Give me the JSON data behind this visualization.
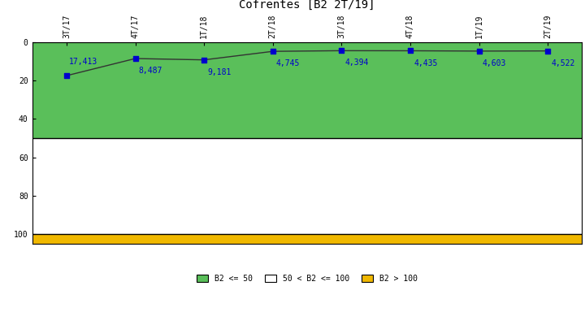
{
  "title": "Cofrentes [B2 2T/19]",
  "x_labels": [
    "3T/17",
    "4T/17",
    "1T/18",
    "2T/18",
    "3T/18",
    "4T/18",
    "1T/19",
    "2T/19"
  ],
  "y_values": [
    17.413,
    8.487,
    9.181,
    4.745,
    4.394,
    4.435,
    4.603,
    4.522
  ],
  "y_label_values": [
    "17,413",
    "8,487",
    "9,181",
    "4,745",
    "4,394",
    "4,435",
    "4,603",
    "4,522"
  ],
  "ylim": [
    0,
    105
  ],
  "yticks": [
    0,
    20,
    40,
    60,
    80,
    100
  ],
  "zone_green_max": 50,
  "zone_white_max": 100,
  "color_green": "#5abf5a",
  "color_white": "#ffffff",
  "color_orange": "#f0b800",
  "color_line": "#333333",
  "color_dot": "#0000cc",
  "color_label": "#0000cc",
  "legend_labels": [
    "B2 <= 50",
    "50 < B2 <= 100",
    "B2 > 100"
  ],
  "background_color": "#ffffff",
  "title_fontsize": 10,
  "label_fontsize": 7,
  "tick_fontsize": 7
}
